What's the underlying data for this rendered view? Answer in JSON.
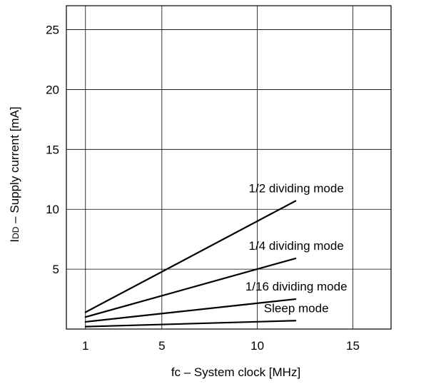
{
  "chart_data": {
    "type": "line",
    "xlabel": "fc – System clock  [MHz]",
    "ylabel_prefix": "I",
    "ylabel_sub": "DD",
    "ylabel_rest": " – Supply current  [mA]",
    "xlim": [
      0,
      17
    ],
    "ylim": [
      0,
      27
    ],
    "x_ticks": [
      1,
      5,
      10,
      15
    ],
    "y_ticks": [
      5,
      10,
      15,
      20,
      25
    ],
    "x_grid": [
      1,
      5,
      10,
      15
    ],
    "y_grid": [
      5,
      10,
      15,
      20,
      25
    ],
    "grid": true,
    "series": [
      {
        "name": "1/2 dividing mode",
        "x": [
          1,
          12
        ],
        "y": [
          1.4,
          10.7
        ]
      },
      {
        "name": "1/4 dividing mode",
        "x": [
          1,
          12
        ],
        "y": [
          1.0,
          5.9
        ]
      },
      {
        "name": "1/16 dividing mode",
        "x": [
          1,
          12
        ],
        "y": [
          0.6,
          2.5
        ]
      },
      {
        "name": "Sleep mode",
        "x": [
          1,
          12
        ],
        "y": [
          0.2,
          0.7
        ]
      }
    ]
  }
}
